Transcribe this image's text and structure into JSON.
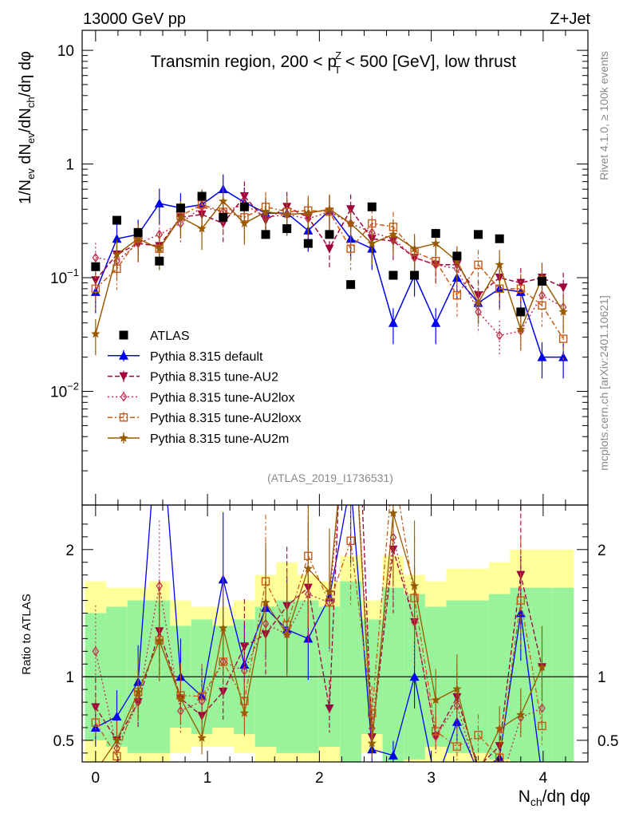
{
  "header": {
    "left": "13000 GeV pp",
    "right": "Z+Jet"
  },
  "main_title": {
    "pre": "Transmin region, 200 < p",
    "sup": "Z",
    "sub": "T",
    "post": " < 500 [GeV], low thrust"
  },
  "side_texts": {
    "rivet": "Rivet 4.1.0, ≥ 100k events",
    "mcplots": "mcplots.cern.ch [arXiv:2401.10621]"
  },
  "analysis_id": "(ATLAS_2019_I1736531)",
  "chart_data": {
    "type": "scatter",
    "xlabel": "N_ch/dη dφ",
    "ylabel": "1/N_ev dN_ev/dN_ch/dη dφ",
    "ratio_ylabel": "Ratio to ATLAS",
    "xlim": [
      -0.12,
      4.4
    ],
    "ylim": [
      0.001,
      15
    ],
    "ratio_ylim": [
      0.33,
      2.35
    ],
    "x_ticks": [
      "0",
      "1",
      "2",
      "3",
      "4"
    ],
    "y_ticks": [
      "10^-2",
      "10^-1",
      "1",
      "10"
    ],
    "ratio_ticks": [
      "0.5",
      "1",
      "2"
    ],
    "x": [
      0.0,
      0.19,
      0.38,
      0.57,
      0.76,
      0.95,
      1.14,
      1.33,
      1.52,
      1.71,
      1.9,
      2.09,
      2.28,
      2.47,
      2.66,
      2.85,
      3.04,
      3.23,
      3.42,
      3.61,
      3.8,
      3.99,
      4.18
    ],
    "series": [
      {
        "name": "ATLAS",
        "color": "#000000",
        "marker": "square",
        "values": [
          0.125,
          0.32,
          0.25,
          0.14,
          0.41,
          0.52,
          0.34,
          0.42,
          0.24,
          0.27,
          0.2,
          0.24,
          0.087,
          0.42,
          0.105,
          0.105,
          0.245,
          0.155,
          0.24,
          0.22,
          0.05,
          0.093,
          null
        ]
      },
      {
        "name": "Pythia 8.315 default",
        "color": "#0000ee",
        "marker": "triangle-up",
        "dash": "",
        "values": [
          0.075,
          0.22,
          0.24,
          0.45,
          0.41,
          0.44,
          0.6,
          0.46,
          0.37,
          0.37,
          0.26,
          0.39,
          0.22,
          0.18,
          0.04,
          0.105,
          0.04,
          0.1,
          0.06,
          0.08,
          0.075,
          0.02,
          0.02
        ]
      },
      {
        "name": "Pythia 8.315 tune-AU2",
        "color": "#a0003c",
        "marker": "triangle-down",
        "dash": "6,3",
        "values": [
          0.095,
          0.16,
          0.2,
          0.19,
          0.34,
          0.36,
          0.3,
          0.52,
          0.32,
          0.42,
          0.34,
          0.18,
          0.4,
          0.22,
          0.21,
          0.15,
          0.13,
          0.13,
          0.07,
          0.1,
          0.09,
          0.1,
          0.082
        ]
      },
      {
        "name": "Pythia 8.315 tune-AU2lox",
        "color": "#c03050",
        "marker": "diamond-open",
        "dash": "2,3",
        "values": [
          0.15,
          0.14,
          0.2,
          0.24,
          0.3,
          0.42,
          0.38,
          0.44,
          0.34,
          0.36,
          0.33,
          0.38,
          0.3,
          0.25,
          0.22,
          0.15,
          0.13,
          0.12,
          0.05,
          0.031,
          0.034,
          0.07,
          0.055
        ]
      },
      {
        "name": "Pythia 8.315 tune-AU2loxx",
        "color": "#c85a14",
        "marker": "square-open",
        "dash": "6,3,2,3",
        "values": [
          0.08,
          0.12,
          0.22,
          0.18,
          0.35,
          0.44,
          0.38,
          0.34,
          0.42,
          0.38,
          0.39,
          0.38,
          0.18,
          0.3,
          0.28,
          0.17,
          0.14,
          0.07,
          0.13,
          0.08,
          0.08,
          0.057,
          0.029
        ]
      },
      {
        "name": "Pythia 8.315 tune-AU2m",
        "color": "#9a5a00",
        "marker": "star",
        "dash": "",
        "values": [
          0.032,
          0.16,
          0.22,
          0.18,
          0.34,
          0.27,
          0.47,
          0.3,
          0.38,
          0.36,
          0.37,
          0.4,
          0.3,
          0.2,
          0.24,
          0.18,
          0.2,
          0.14,
          0.06,
          0.13,
          0.035,
          0.1,
          0.05
        ]
      }
    ],
    "ratio_band_inner_halfwidth": [
      0.5,
      0.55,
      0.6,
      0.6,
      0.4,
      0.45,
      0.4,
      0.45,
      0.55,
      0.6,
      0.6,
      0.55,
      0.75,
      0.45,
      0.7,
      0.65,
      0.55,
      0.6,
      0.6,
      0.65,
      0.7,
      0.7,
      0.7
    ],
    "ratio_band_outer_halfwidth": [
      0.75,
      0.7,
      0.7,
      0.75,
      0.6,
      0.55,
      0.55,
      0.6,
      0.8,
      0.9,
      0.8,
      0.75,
      0.95,
      0.6,
      0.95,
      0.8,
      0.75,
      0.85,
      0.85,
      0.9,
      1.0,
      1.0,
      1.0
    ]
  }
}
